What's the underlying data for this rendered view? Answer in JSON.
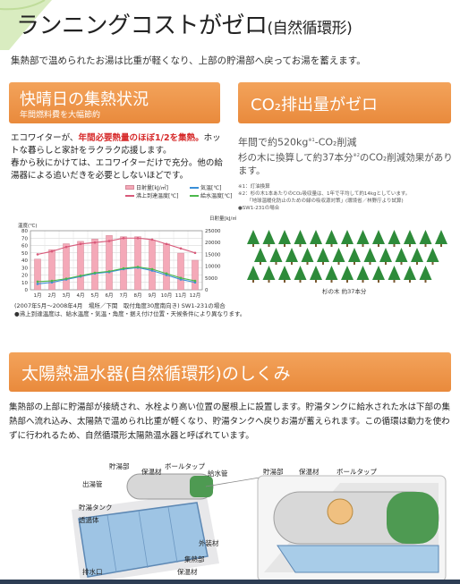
{
  "header": {
    "title": "ランニングコストがゼロ",
    "title_sub": "(自然循環形)",
    "intro": "集熱部で温められたお湯は比重が軽くなり、上部の貯湯部へ戻ってお湯を蓄えます。"
  },
  "panel_sunny": {
    "heading": "快晴日の集熱状況",
    "subheading": "年間燃料費を大幅節約",
    "text_pre": "エコワイターが、",
    "text_red": "年間必要熱量のほぼ1/2を集熱。",
    "text_post": "ホットな暮らしと家計をラクラク応援します。",
    "text2": "春から秋にかけては、エコワイターだけで充分。他の給湯器による追いだきを必要としないほどです。",
    "note_line1": "(2007年5月～2008年4月　場所／下関　取付角度30度南向き) SW1-231の場合",
    "note_line2": "●沸上到達温度は、給水温度・気温・角度・据え付け位置・天候条件により異なります。"
  },
  "chart_data": {
    "type": "bar",
    "categories": [
      "1月",
      "2月",
      "3月",
      "4月",
      "5月",
      "6月",
      "7月",
      "8月",
      "9月",
      "10月",
      "11月",
      "12月"
    ],
    "left_axis_label": "温度(℃)",
    "right_axis_label": "日射量[kJ/㎡]",
    "left_ticks": [
      "80",
      "70",
      "60",
      "50",
      "40",
      "30",
      "20",
      "10",
      "0"
    ],
    "right_ticks": [
      "25000",
      "20000",
      "15000",
      "10000",
      "5000",
      "0"
    ],
    "ylim_left": [
      0,
      80
    ],
    "ylim_right": [
      0,
      25000
    ],
    "legend": [
      {
        "name": "日射量[kJ/㎡]",
        "color": "#f4a9b8"
      },
      {
        "name": "沸上到達温度[℃]",
        "color": "#d85a7a"
      },
      {
        "name": "気温[℃]",
        "color": "#3a8fd8"
      },
      {
        "name": "給水温度[℃]",
        "color": "#4cb84c"
      }
    ],
    "series": [
      {
        "name": "日射量[kJ/㎡]",
        "kind": "bar",
        "axis": "right",
        "values": [
          13000,
          17000,
          19500,
          20500,
          21500,
          23000,
          22500,
          22500,
          21000,
          19500,
          15500,
          12500
        ]
      },
      {
        "name": "沸上到達温度[℃]",
        "kind": "line",
        "axis": "left",
        "values": [
          48,
          52,
          58,
          62,
          64,
          66,
          70,
          70,
          68,
          62,
          56,
          50
        ]
      },
      {
        "name": "気温[℃]",
        "kind": "line",
        "axis": "left",
        "values": [
          8,
          10,
          14,
          18,
          22,
          24,
          28,
          30,
          26,
          20,
          14,
          10
        ]
      },
      {
        "name": "給水温度[℃]",
        "kind": "line",
        "axis": "left",
        "values": [
          11,
          12,
          15,
          19,
          23,
          25,
          29,
          31,
          28,
          22,
          16,
          12
        ]
      }
    ]
  },
  "panel_co2": {
    "heading": "CO₂排出量がゼロ",
    "line1_pre": "年間で約520kg",
    "line1_sup": "※1",
    "line1_post": "-CO₂削減",
    "line2_pre": "杉の木に換算して約37本分",
    "line2_sup": "※2",
    "line2_post": "のCO₂削減効果があります。",
    "note1": "※1：灯油換算",
    "note2": "※2：杉の木1本あたりのCO₂吸収量は、1年で平均して約14kgとしています。",
    "note3": "「地球温暖化防止のための緑の吸収源対策」(環境省／林野庁より試算)",
    "note4": "●SW1-231の場合",
    "tree_caption": "杉の木 約37本分"
  },
  "panel_system": {
    "heading": "太陽熱温水器(自然循環形)のしくみ",
    "text": "集熱部の上部に貯湯部が接続され、水栓より高い位置の屋根上に設置します。貯湯タンクに給水された水は下部の集熱部へ流れ込み、太陽熱で温められ比重が軽くなり、貯湯タンクへ戻りお湯が蓄えられます。この循環は動力を使わずに行われるため、自然循環形太陽熱温水器と呼ばれています。"
  },
  "diagram_labels": {
    "storage": "貯湯部",
    "insulation_top": "保温材",
    "ball_tap": "ボールタップ",
    "supply_pipe": "給水管",
    "outlet_pipe": "出湯管",
    "tank": "貯湯タンク",
    "transparent": "透過体",
    "outer": "外装材",
    "collector": "集熱部",
    "drain": "排水口",
    "insulation_bottom": "保温材",
    "z_storage": "貯湯部",
    "z_insulation": "保温材",
    "z_ball_tap": "ボールタップ"
  },
  "colors": {
    "accent_orange": "#ec9244",
    "highlight_red": "#d62a2a",
    "tree_green": "#2e8b3a"
  }
}
